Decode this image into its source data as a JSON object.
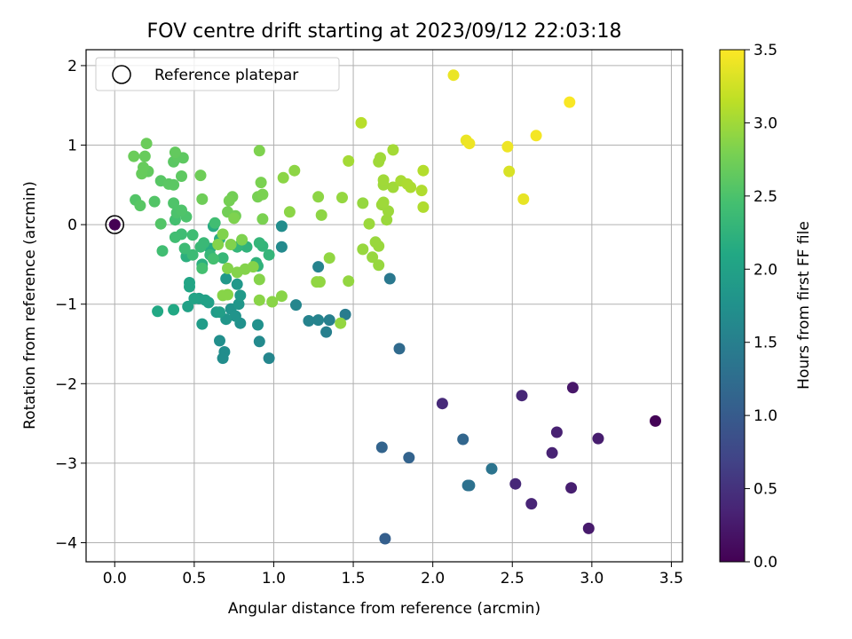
{
  "chart_data": {
    "type": "scatter",
    "title": "FOV centre drift starting at 2023/09/12 22:03:18",
    "xlabel": "Angular distance from reference (arcmin)",
    "ylabel": "Rotation from reference (arcmin)",
    "xlim": [
      -0.18,
      3.57
    ],
    "ylim": [
      -4.24,
      2.2
    ],
    "xticks": [
      0.0,
      0.5,
      1.0,
      1.5,
      2.0,
      2.5,
      3.0,
      3.5
    ],
    "xtick_labels": [
      "0.0",
      "0.5",
      "1.0",
      "1.5",
      "2.0",
      "2.5",
      "3.0",
      "3.5"
    ],
    "yticks": [
      -4,
      -3,
      -2,
      -1,
      0,
      1,
      2
    ],
    "ytick_labels": [
      "−4",
      "−3",
      "−2",
      "−1",
      "0",
      "1",
      "2"
    ],
    "grid": true,
    "legend": {
      "position": "top-left",
      "entries": [
        "Reference platepar"
      ]
    },
    "reference_point": {
      "x": 0.0,
      "y": 0.0
    },
    "colorbar": {
      "label": "Hours from first FF file",
      "colormap": "viridis",
      "range": [
        0.0,
        3.5
      ],
      "ticks": [
        0.0,
        0.5,
        1.0,
        1.5,
        2.0,
        2.5,
        3.0,
        3.5
      ],
      "tick_labels": [
        "0.0",
        "0.5",
        "1.0",
        "1.5",
        "2.0",
        "2.5",
        "3.0",
        "3.5"
      ]
    },
    "points": [
      [
        0.0,
        0.0,
        0.0
      ],
      [
        3.4,
        -2.47,
        0.02
      ],
      [
        2.98,
        -3.82,
        0.25
      ],
      [
        2.88,
        -2.05,
        0.22
      ],
      [
        2.87,
        -3.31,
        0.3
      ],
      [
        3.04,
        -2.69,
        0.28
      ],
      [
        2.78,
        -2.61,
        0.32
      ],
      [
        2.75,
        -2.87,
        0.34
      ],
      [
        2.62,
        -3.51,
        0.36
      ],
      [
        2.56,
        -2.15,
        0.38
      ],
      [
        2.52,
        -3.26,
        0.4
      ],
      [
        2.06,
        -2.25,
        0.42
      ],
      [
        2.22,
        -3.28,
        1.3
      ],
      [
        2.23,
        -3.28,
        1.3
      ],
      [
        2.37,
        -3.07,
        1.35
      ],
      [
        1.7,
        -3.95,
        1.05
      ],
      [
        1.85,
        -2.93,
        1.1
      ],
      [
        1.68,
        -2.8,
        1.12
      ],
      [
        2.19,
        -2.7,
        1.15
      ],
      [
        1.79,
        -1.56,
        1.2
      ],
      [
        1.73,
        -0.68,
        1.4
      ],
      [
        1.45,
        -1.13,
        1.45
      ],
      [
        1.33,
        -1.35,
        1.5
      ],
      [
        1.35,
        -1.2,
        1.5
      ],
      [
        1.28,
        -1.2,
        1.55
      ],
      [
        1.22,
        -1.21,
        1.55
      ],
      [
        1.28,
        -0.53,
        1.55
      ],
      [
        1.14,
        -1.01,
        1.6
      ],
      [
        0.97,
        -1.68,
        1.6
      ],
      [
        0.91,
        -1.47,
        1.65
      ],
      [
        1.05,
        -0.28,
        1.65
      ],
      [
        1.05,
        -0.02,
        1.7
      ],
      [
        0.69,
        -1.6,
        1.7
      ],
      [
        0.68,
        -1.68,
        1.7
      ],
      [
        0.66,
        -1.46,
        1.72
      ],
      [
        0.79,
        -1.24,
        1.75
      ],
      [
        0.9,
        -1.26,
        1.75
      ],
      [
        0.73,
        -1.06,
        1.78
      ],
      [
        0.76,
        -1.15,
        1.8
      ],
      [
        0.78,
        -1.0,
        1.82
      ],
      [
        0.7,
        -1.19,
        1.82
      ],
      [
        0.77,
        -0.75,
        1.85
      ],
      [
        0.7,
        -0.68,
        1.85
      ],
      [
        0.79,
        -0.89,
        1.88
      ],
      [
        0.64,
        -1.1,
        1.9
      ],
      [
        0.55,
        -1.25,
        1.92
      ],
      [
        0.66,
        -1.1,
        1.95
      ],
      [
        0.53,
        -0.93,
        1.95
      ],
      [
        0.59,
        -0.98,
        1.97
      ],
      [
        0.46,
        -1.03,
        2.0
      ],
      [
        0.57,
        -0.95,
        2.0
      ],
      [
        0.5,
        -0.93,
        2.02
      ],
      [
        0.47,
        -0.78,
        2.05
      ],
      [
        0.47,
        -0.73,
        2.05
      ],
      [
        0.37,
        -1.07,
        2.1
      ],
      [
        0.27,
        -1.09,
        2.1
      ],
      [
        0.62,
        -0.02,
        2.15
      ],
      [
        0.6,
        -0.3,
        2.15
      ],
      [
        0.66,
        -0.18,
        2.18
      ],
      [
        0.55,
        -0.5,
        2.2
      ],
      [
        0.45,
        -0.4,
        2.2
      ],
      [
        0.83,
        -0.28,
        2.25
      ],
      [
        0.89,
        -0.48,
        2.25
      ],
      [
        0.9,
        -0.52,
        2.25
      ],
      [
        0.93,
        -0.27,
        2.28
      ],
      [
        0.91,
        -0.23,
        2.3
      ],
      [
        0.97,
        -0.38,
        2.3
      ],
      [
        0.77,
        -0.28,
        2.3
      ],
      [
        0.68,
        -0.42,
        2.32
      ],
      [
        0.6,
        -0.38,
        2.32
      ],
      [
        0.54,
        -0.28,
        2.35
      ],
      [
        0.56,
        -0.23,
        2.35
      ],
      [
        0.49,
        -0.38,
        2.38
      ],
      [
        0.44,
        -0.3,
        2.38
      ],
      [
        0.49,
        -0.13,
        2.4
      ],
      [
        0.42,
        -0.12,
        2.4
      ],
      [
        0.38,
        -0.16,
        2.42
      ],
      [
        0.3,
        -0.33,
        2.42
      ],
      [
        0.63,
        0.02,
        2.42
      ],
      [
        0.62,
        -0.43,
        2.45
      ],
      [
        0.55,
        -0.55,
        2.45
      ],
      [
        0.38,
        0.06,
        2.45
      ],
      [
        0.45,
        0.1,
        2.5
      ],
      [
        0.39,
        0.15,
        2.5
      ],
      [
        0.42,
        0.18,
        2.52
      ],
      [
        0.37,
        0.27,
        2.52
      ],
      [
        0.29,
        0.01,
        2.55
      ],
      [
        0.25,
        0.29,
        2.55
      ],
      [
        0.13,
        0.31,
        2.55
      ],
      [
        0.16,
        0.24,
        2.58
      ],
      [
        0.29,
        0.55,
        2.58
      ],
      [
        0.34,
        0.51,
        2.6
      ],
      [
        0.37,
        0.5,
        2.6
      ],
      [
        0.37,
        0.79,
        2.6
      ],
      [
        0.42,
        0.61,
        2.62
      ],
      [
        0.43,
        0.84,
        2.62
      ],
      [
        0.4,
        0.85,
        2.62
      ],
      [
        0.38,
        0.91,
        2.65
      ],
      [
        0.21,
        0.67,
        2.65
      ],
      [
        0.17,
        0.64,
        2.68
      ],
      [
        0.18,
        0.72,
        2.68
      ],
      [
        0.19,
        0.86,
        2.68
      ],
      [
        0.12,
        0.86,
        2.7
      ],
      [
        0.2,
        1.02,
        2.7
      ],
      [
        0.54,
        0.62,
        2.72
      ],
      [
        0.55,
        0.32,
        2.72
      ],
      [
        0.71,
        0.16,
        2.75
      ],
      [
        0.76,
        0.11,
        2.75
      ],
      [
        0.74,
        0.35,
        2.75
      ],
      [
        0.72,
        0.3,
        2.77
      ],
      [
        0.9,
        0.35,
        2.78
      ],
      [
        0.92,
        0.53,
        2.8
      ],
      [
        0.93,
        0.07,
        2.8
      ],
      [
        0.93,
        0.38,
        2.8
      ],
      [
        0.91,
        0.93,
        2.82
      ],
      [
        0.75,
        0.08,
        2.82
      ],
      [
        0.8,
        -0.19,
        2.82
      ],
      [
        0.73,
        -0.25,
        2.83
      ],
      [
        0.68,
        -0.12,
        2.83
      ],
      [
        0.65,
        -0.25,
        2.85
      ],
      [
        0.71,
        -0.55,
        2.85
      ],
      [
        0.77,
        -0.6,
        2.85
      ],
      [
        0.82,
        -0.56,
        2.85
      ],
      [
        0.87,
        -0.53,
        2.86
      ],
      [
        0.91,
        -0.69,
        2.86
      ],
      [
        0.68,
        -0.89,
        2.87
      ],
      [
        0.71,
        -0.88,
        2.87
      ],
      [
        0.91,
        -0.95,
        2.88
      ],
      [
        0.99,
        -0.97,
        2.88
      ],
      [
        1.05,
        -0.9,
        2.88
      ],
      [
        1.1,
        0.16,
        2.89
      ],
      [
        1.06,
        0.59,
        2.89
      ],
      [
        1.13,
        0.68,
        2.9
      ],
      [
        1.28,
        0.35,
        2.9
      ],
      [
        1.3,
        0.12,
        2.9
      ],
      [
        1.35,
        -0.42,
        2.92
      ],
      [
        1.27,
        -0.72,
        2.92
      ],
      [
        1.29,
        -0.72,
        2.92
      ],
      [
        1.42,
        -1.24,
        2.93
      ],
      [
        1.47,
        -0.71,
        2.93
      ],
      [
        1.43,
        0.34,
        2.94
      ],
      [
        1.56,
        0.27,
        2.94
      ],
      [
        1.56,
        -0.31,
        2.95
      ],
      [
        1.62,
        -0.41,
        2.95
      ],
      [
        1.66,
        -0.51,
        2.95
      ],
      [
        1.66,
        -0.27,
        2.96
      ],
      [
        1.64,
        -0.22,
        2.96
      ],
      [
        1.6,
        0.01,
        2.97
      ],
      [
        1.71,
        0.06,
        2.97
      ],
      [
        1.72,
        0.17,
        2.98
      ],
      [
        1.68,
        0.25,
        2.98
      ],
      [
        1.69,
        0.28,
        2.99
      ],
      [
        1.69,
        0.5,
        2.99
      ],
      [
        1.69,
        0.56,
        3.0
      ],
      [
        1.75,
        0.47,
        3.0
      ],
      [
        1.66,
        0.79,
        3.0
      ],
      [
        1.67,
        0.84,
        3.0
      ],
      [
        1.47,
        0.8,
        3.02
      ],
      [
        1.75,
        0.94,
        3.02
      ],
      [
        1.8,
        0.55,
        3.04
      ],
      [
        1.84,
        0.51,
        3.06
      ],
      [
        1.86,
        0.47,
        3.06
      ],
      [
        1.93,
        0.43,
        3.08
      ],
      [
        1.94,
        0.22,
        3.08
      ],
      [
        1.94,
        0.68,
        3.1
      ],
      [
        1.55,
        1.28,
        3.12
      ],
      [
        2.13,
        1.88,
        3.4
      ],
      [
        2.21,
        1.06,
        3.4
      ],
      [
        2.23,
        1.02,
        3.42
      ],
      [
        2.47,
        0.98,
        3.42
      ],
      [
        2.48,
        0.67,
        3.3
      ],
      [
        2.57,
        0.32,
        3.38
      ],
      [
        2.65,
        1.12,
        3.45
      ],
      [
        2.86,
        1.54,
        3.48
      ]
    ]
  }
}
